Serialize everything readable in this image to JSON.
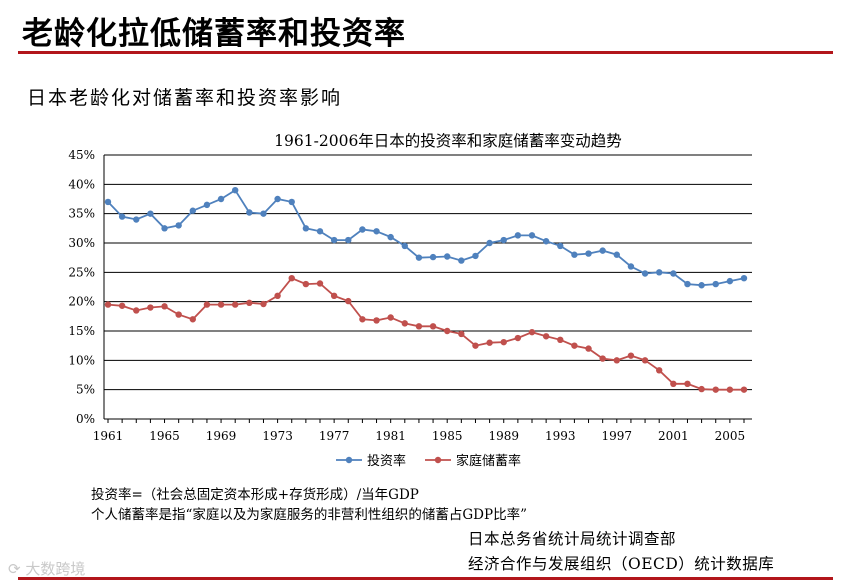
{
  "slide_title": "老龄化拉低储蓄率和投资率",
  "subtitle": "日本老龄化对储蓄率和投资率影响",
  "chart_data": {
    "type": "line",
    "title": "1961-2006年日本的投资率和家庭储蓄率变动趋势",
    "x": [
      1961,
      1962,
      1963,
      1964,
      1965,
      1966,
      1967,
      1968,
      1969,
      1970,
      1971,
      1972,
      1973,
      1974,
      1975,
      1976,
      1977,
      1978,
      1979,
      1980,
      1981,
      1982,
      1983,
      1984,
      1985,
      1986,
      1987,
      1988,
      1989,
      1990,
      1991,
      1992,
      1993,
      1994,
      1995,
      1996,
      1997,
      1998,
      1999,
      2000,
      2001,
      2002,
      2003,
      2004,
      2005,
      2006
    ],
    "x_tick_labels": [
      "1961",
      "1965",
      "1969",
      "1973",
      "1977",
      "1981",
      "1985",
      "1989",
      "1993",
      "1997",
      "2001",
      "2005"
    ],
    "y_tick_labels": [
      "0%",
      "5%",
      "10%",
      "15%",
      "20%",
      "25%",
      "30%",
      "35%",
      "40%",
      "45%"
    ],
    "ylim": [
      0,
      45
    ],
    "grid": true,
    "legend_position": "bottom",
    "series": [
      {
        "name": "投资率",
        "color": "#4f81bd",
        "values": [
          37.0,
          34.5,
          34.0,
          35.0,
          32.5,
          33.0,
          35.5,
          36.5,
          37.5,
          39.0,
          35.2,
          35.0,
          37.5,
          37.0,
          32.5,
          32.0,
          30.5,
          30.5,
          32.3,
          32.0,
          31.0,
          29.5,
          27.5,
          27.6,
          27.7,
          27.0,
          27.8,
          30.0,
          30.5,
          31.3,
          31.3,
          30.3,
          29.5,
          28.0,
          28.2,
          28.7,
          28.0,
          26.0,
          24.8,
          25.0,
          24.8,
          23.0,
          22.8,
          23.0,
          23.5,
          24.0
        ]
      },
      {
        "name": "家庭储蓄率",
        "color": "#c0504d",
        "values": [
          19.5,
          19.3,
          18.5,
          19.0,
          19.2,
          17.8,
          17.0,
          19.5,
          19.5,
          19.5,
          19.8,
          19.6,
          21.0,
          24.0,
          23.0,
          23.1,
          21.0,
          20.1,
          17.0,
          16.8,
          17.3,
          16.3,
          15.8,
          15.8,
          15.0,
          14.5,
          12.5,
          13.0,
          13.1,
          13.8,
          14.8,
          14.1,
          13.5,
          12.5,
          12.0,
          10.3,
          10.0,
          10.8,
          10.0,
          8.3,
          6.0,
          6.0,
          5.1,
          5.0,
          5.0,
          5.0
        ]
      }
    ]
  },
  "notes": {
    "line1": "投资率=（社会总固定资本形成+存货形成）/当年GDP",
    "line2": "个人储蓄率是指“家庭以及为家庭服务的非营利性组织的储蓄占GDP比率”"
  },
  "sources": {
    "line1": "日本总务省统计局统计调查部",
    "line2": "经济合作与发展组织（OECD）统计数据库"
  },
  "watermark": "大数跨境",
  "colors": {
    "accent_red": "#b2161b",
    "investment": "#4f81bd",
    "savings": "#c0504d"
  }
}
